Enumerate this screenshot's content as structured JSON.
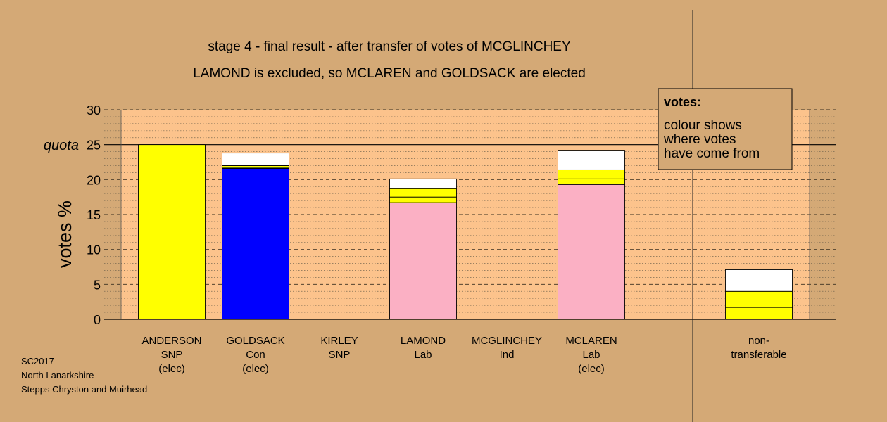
{
  "chart_data": {
    "type": "bar",
    "stacked": true,
    "title": "stage 4 - final result - after transfer of votes of MCGLINCHEY",
    "subtitle": "LAMOND is excluded, so MCLAREN and GOLDSACK are elected",
    "ylabel": "votes %",
    "ylim": [
      0,
      30
    ],
    "yticks": [
      "0",
      "5",
      "10",
      "15",
      "20",
      "25",
      "30"
    ],
    "quota_label": "quota",
    "quota": 25,
    "categories": [
      {
        "lines": [
          "ANDERSON",
          "SNP",
          "(elec)"
        ]
      },
      {
        "lines": [
          "GOLDSACK",
          "Con",
          "(elec)"
        ]
      },
      {
        "lines": [
          "KIRLEY",
          "SNP"
        ]
      },
      {
        "lines": [
          "LAMOND",
          "Lab"
        ]
      },
      {
        "lines": [
          "MCGLINCHEY",
          "Ind"
        ]
      },
      {
        "lines": [
          "MCLAREN",
          "Lab",
          "(elec)"
        ]
      },
      {
        "lines": [
          "non-",
          "transferable"
        ]
      }
    ],
    "stacks": [
      [
        {
          "value": 25.0,
          "color": "#ffff00"
        }
      ],
      [
        {
          "value": 21.6,
          "color": "#0000ff"
        },
        {
          "value": 0.2,
          "color": "#5a6e1e"
        },
        {
          "value": 0.2,
          "color": "#ffff00"
        },
        {
          "value": 1.8,
          "color": "#ffffff"
        }
      ],
      [],
      [
        {
          "value": 16.7,
          "color": "#fbb0c4"
        },
        {
          "value": 0.8,
          "color": "#ffff00"
        },
        {
          "value": 1.2,
          "color": "#ffff00"
        },
        {
          "value": 1.4,
          "color": "#ffffff"
        }
      ],
      [],
      [
        {
          "value": 19.3,
          "color": "#fbb0c4"
        },
        {
          "value": 0.8,
          "color": "#ffff00"
        },
        {
          "value": 1.3,
          "color": "#ffff00"
        },
        {
          "value": 2.8,
          "color": "#ffffff"
        }
      ],
      [
        {
          "value": 1.7,
          "color": "#ffff00"
        },
        {
          "value": 2.3,
          "color": "#ffff00"
        },
        {
          "value": 3.1,
          "color": "#ffffff"
        }
      ]
    ],
    "legend": {
      "title": "votes:",
      "lines": [
        "colour shows",
        "where votes",
        "have come from"
      ]
    },
    "colors": {
      "background": "#d4a976",
      "plot_area": "#fcc38c"
    }
  },
  "footer": {
    "lines": [
      "SC2017",
      "North Lanarkshire",
      "Stepps Chryston and Muirhead"
    ]
  }
}
